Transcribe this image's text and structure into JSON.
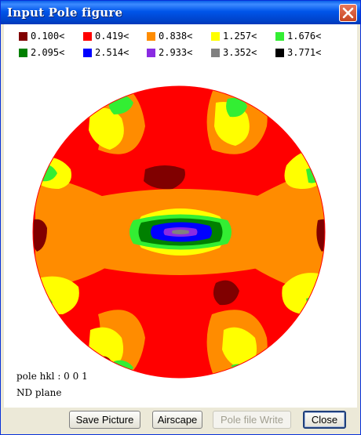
{
  "window": {
    "title": "Input Pole figure",
    "close_icon": "close-x-icon"
  },
  "legend": {
    "items": [
      {
        "label": "0.100<",
        "color": "#800000"
      },
      {
        "label": "0.419<",
        "color": "#ff0000"
      },
      {
        "label": "0.838<",
        "color": "#ff8c00"
      },
      {
        "label": "1.257<",
        "color": "#ffff00"
      },
      {
        "label": "1.676<",
        "color": "#33ee33"
      },
      {
        "label": "2.095<",
        "color": "#008000"
      },
      {
        "label": "2.514<",
        "color": "#0000ff"
      },
      {
        "label": "2.933<",
        "color": "#8a2be2"
      },
      {
        "label": "3.352<",
        "color": "#808080"
      },
      {
        "label": "3.771<",
        "color": "#000000"
      }
    ]
  },
  "info": {
    "pole_hkl": "pole hkl : 0  0  1",
    "plane": "ND plane"
  },
  "buttons": {
    "save_picture": "Save Picture",
    "airscape": "Airscape",
    "pole_file_write": "Pole file Write",
    "close": "Close"
  }
}
